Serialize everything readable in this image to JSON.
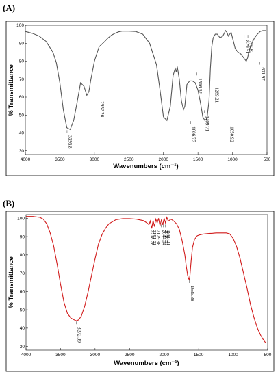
{
  "chart_data": [
    {
      "type": "line",
      "panel_label": "(A)",
      "xlabel": "Wavenumbers (cm⁻¹)",
      "ylabel": "% Transmittance",
      "xlim": [
        4000,
        500
      ],
      "ylim": [
        28,
        100
      ],
      "xticks": [
        "4000",
        "3500",
        "3000",
        "2500",
        "2000",
        "1500",
        "1000",
        "500"
      ],
      "yticks": [
        "100",
        "90",
        "80",
        "70",
        "60",
        "50",
        "40",
        "30"
      ],
      "grid": false,
      "line_color": "#555555",
      "series": [
        {
          "x": [
            4000,
            3900,
            3800,
            3700,
            3600,
            3550,
            3500,
            3450,
            3400,
            3350,
            3300,
            3250,
            3200,
            3150,
            3110,
            3080,
            3050,
            3000,
            2932,
            2850,
            2800,
            2750,
            2700,
            2650,
            2600,
            2500,
            2400,
            2300,
            2200,
            2100,
            2050,
            2000,
            1950,
            1900,
            1860,
            1830,
            1815,
            1800,
            1770,
            1740,
            1710,
            1690,
            1680,
            1660,
            1620,
            1580,
            1540,
            1500,
            1460,
            1430,
            1400,
            1370,
            1340,
            1320,
            1300,
            1280,
            1250,
            1220,
            1180,
            1140,
            1100,
            1080,
            1060,
            1040,
            1020,
            1000,
            980,
            960,
            940,
            920,
            880,
            840,
            800,
            780,
            760,
            720,
            680,
            640,
            600,
            560,
            520
          ],
          "y": [
            96.5,
            95.5,
            94,
            91,
            85,
            79,
            68,
            53,
            43,
            42,
            47,
            57,
            68,
            66,
            61,
            63,
            70,
            80,
            88,
            91,
            93,
            94.5,
            95.5,
            96.3,
            96.7,
            96.7,
            96.5,
            95,
            90,
            78,
            64,
            49,
            47,
            55,
            72,
            76,
            74,
            77,
            70,
            58,
            53,
            55,
            59,
            67,
            69,
            69,
            68,
            64,
            56,
            49,
            47,
            48,
            58,
            76,
            88,
            93,
            95,
            95,
            93,
            94,
            97,
            96,
            94,
            95,
            96,
            93,
            90,
            87,
            86,
            85,
            84,
            82,
            80,
            82,
            86,
            90,
            93,
            95,
            96.5,
            97,
            97
          ]
        }
      ],
      "annotations": [
        "3395.8",
        "2932.26",
        "1606.77",
        "1516.52",
        "1409.71",
        "1269.21",
        "1050.92",
        "829.51",
        "776.82",
        "601.97"
      ],
      "annotation_positions": [
        {
          "x": 3395.8,
          "y": 42
        },
        {
          "x": 2932.26,
          "y": 61
        },
        {
          "x": 1606.77,
          "y": 47
        },
        {
          "x": 1516.52,
          "y": 74
        },
        {
          "x": 1409.71,
          "y": 53
        },
        {
          "x": 1269.21,
          "y": 69
        },
        {
          "x": 1050.92,
          "y": 47
        },
        {
          "x": 829.51,
          "y": 95
        },
        {
          "x": 776.82,
          "y": 95
        },
        {
          "x": 601.97,
          "y": 80
        }
      ]
    },
    {
      "type": "line",
      "panel_label": "(B)",
      "xlabel": "Wavenumbers (cm⁻¹)",
      "ylabel": "% Transmittance",
      "xlim": [
        4000,
        500
      ],
      "ylim": [
        28,
        102
      ],
      "xticks": [
        "4000",
        "3500",
        "3000",
        "2500",
        "2000",
        "1500",
        "1000",
        "500"
      ],
      "yticks": [
        "100",
        "90",
        "80",
        "70",
        "60",
        "50",
        "40",
        "30"
      ],
      "grid": false,
      "line_color": "#d11a1a",
      "series": [
        {
          "x": [
            4000,
            3900,
            3800,
            3750,
            3700,
            3650,
            3600,
            3550,
            3500,
            3450,
            3400,
            3350,
            3300,
            3272,
            3240,
            3200,
            3150,
            3100,
            3050,
            3000,
            2950,
            2900,
            2850,
            2800,
            2700,
            2600,
            2500,
            2400,
            2300,
            2250,
            2220,
            2200,
            2180,
            2160,
            2140,
            2120,
            2100,
            2080,
            2060,
            2040,
            2020,
            2000,
            1980,
            1960,
            1940,
            1900,
            1860,
            1820,
            1780,
            1740,
            1720,
            1700,
            1680,
            1660,
            1645,
            1635,
            1625,
            1610,
            1590,
            1560,
            1520,
            1480,
            1440,
            1400,
            1350,
            1300,
            1250,
            1200,
            1150,
            1100,
            1050,
            1000,
            950,
            900,
            850,
            800,
            750,
            700,
            650,
            600,
            560,
            530
          ],
          "y": [
            101,
            101,
            100.5,
            99.5,
            97,
            92,
            85,
            75,
            64,
            54,
            48,
            45.5,
            44.5,
            44,
            44.5,
            46.5,
            52,
            60,
            69,
            78,
            86,
            91,
            94.5,
            97,
            99.2,
            99.8,
            99.8,
            99.5,
            98.7,
            97.5,
            96.5,
            98.5,
            94.5,
            98.8,
            95.5,
            99.5,
            97.5,
            100,
            96,
            99,
            96.5,
            100,
            97.5,
            100.5,
            98.5,
            99.5,
            98.5,
            97,
            94,
            88,
            84,
            80,
            74,
            69,
            67,
            66.5,
            69,
            76,
            84,
            88.5,
            90.5,
            91,
            91.3,
            91.5,
            91.7,
            91.8,
            92,
            92,
            92,
            92,
            91.5,
            89,
            84.5,
            78,
            70,
            62,
            53,
            46,
            40,
            36,
            33.5,
            32
          ]
        }
      ],
      "annotations": [
        "3272.09",
        "2218.78",
        "2191.01",
        "2129.98",
        "2044.04",
        "2010.07",
        "1980.21",
        "1635.38"
      ],
      "annotation_positions": [
        {
          "x": 3272.09,
          "y": 44
        },
        {
          "x": 2218.78,
          "y": 97
        },
        {
          "x": 2191.01,
          "y": 97
        },
        {
          "x": 2129.98,
          "y": 97
        },
        {
          "x": 2044.04,
          "y": 97
        },
        {
          "x": 2010.07,
          "y": 97
        },
        {
          "x": 1980.21,
          "y": 97
        },
        {
          "x": 1635.38,
          "y": 66.5
        }
      ]
    }
  ]
}
